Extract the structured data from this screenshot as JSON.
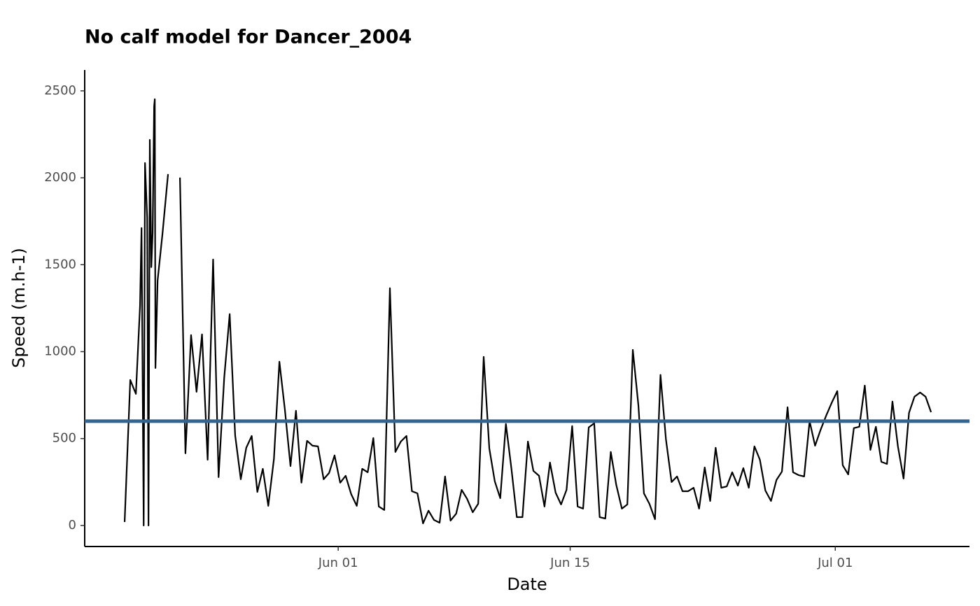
{
  "chart_data": {
    "type": "line",
    "title": "No calf model for Dancer_2004",
    "x_label": "Date",
    "y_label": "Speed (m.h-1)",
    "x": [
      -12.89,
      -12.55,
      -12.21,
      -11.96,
      -11.87,
      -11.74,
      -11.66,
      -11.53,
      -11.45,
      -11.37,
      -11.28,
      -11.2,
      -11.11,
      -11.07,
      -11.03,
      -10.9,
      -10.6,
      -10.27,
      -9.9,
      -9.55,
      -9.22,
      -8.88,
      -8.55,
      -8.22,
      -7.88,
      -7.55,
      -7.22,
      -6.88,
      -6.55,
      -6.22,
      -5.88,
      -5.55,
      -5.22,
      -4.88,
      -4.55,
      -4.22,
      -3.88,
      -3.55,
      -3.22,
      -2.88,
      -2.55,
      -2.22,
      -1.88,
      -1.55,
      -1.22,
      -0.88,
      -0.55,
      -0.22,
      0.12,
      0.45,
      0.78,
      1.12,
      1.45,
      1.78,
      2.12,
      2.45,
      2.78,
      3.12,
      3.45,
      3.78,
      4.12,
      4.45,
      4.78,
      5.12,
      5.45,
      5.78,
      6.12,
      6.45,
      6.78,
      7.12,
      7.45,
      7.78,
      8.12,
      8.45,
      8.78,
      9.12,
      9.45,
      9.78,
      10.12,
      10.45,
      10.78,
      11.12,
      11.45,
      11.78,
      12.12,
      12.45,
      12.78,
      13.12,
      13.45,
      13.78,
      14.12,
      14.45,
      14.78,
      15.12,
      15.45,
      15.78,
      16.12,
      16.45,
      16.78,
      17.12,
      17.45,
      17.78,
      18.12,
      18.45,
      18.78,
      19.12,
      19.45,
      19.78,
      20.12,
      20.45,
      20.78,
      21.12,
      21.45,
      21.78,
      22.12,
      22.45,
      22.78,
      23.12,
      23.45,
      23.78,
      24.12,
      24.45,
      24.78,
      25.12,
      25.45,
      25.78,
      26.12,
      26.45,
      26.78,
      27.12,
      27.45,
      27.78,
      28.12,
      28.45,
      28.78,
      29.12,
      29.45,
      29.78,
      30.12,
      30.45,
      30.78,
      31.12,
      31.45,
      31.78,
      32.12,
      32.45,
      32.78,
      33.12,
      33.45,
      33.78,
      34.12,
      34.45,
      34.78,
      35.12,
      35.45,
      35.78
    ],
    "values": [
      20,
      837,
      757,
      1264,
      1711,
      0,
      2085,
      1771,
      0,
      2218,
      1486,
      1683,
      2411,
      2452,
      906,
      1409,
      1683,
      2021,
      null,
      2001,
      415,
      1095,
      769,
      1099,
      378,
      1530,
      278,
      849,
      1216,
      519,
      266,
      447,
      515,
      193,
      326,
      113,
      382,
      942,
      668,
      342,
      660,
      246,
      487,
      459,
      455,
      266,
      302,
      403,
      246,
      286,
      181,
      113,
      326,
      306,
      503,
      109,
      89,
      1365,
      423,
      483,
      515,
      197,
      185,
      12,
      85,
      32,
      16,
      282,
      28,
      68,
      205,
      153,
      76,
      125,
      970,
      443,
      254,
      157,
      584,
      330,
      48,
      48,
      483,
      314,
      286,
      109,
      362,
      189,
      121,
      205,
      572,
      109,
      97,
      564,
      588,
      48,
      40,
      423,
      234,
      97,
      121,
      1010,
      688,
      185,
      125,
      36,
      866,
      495,
      250,
      282,
      197,
      197,
      217,
      97,
      334,
      141,
      447,
      217,
      225,
      306,
      229,
      330,
      217,
      455,
      378,
      201,
      141,
      262,
      310,
      680,
      306,
      290,
      282,
      600,
      459,
      552,
      632,
      705,
      773,
      346,
      294,
      560,
      568,
      805,
      435,
      568,
      366,
      354,
      713,
      455,
      270,
      648,
      741,
      765,
      741,
      652
    ],
    "color": "#000000",
    "hline": {
      "value": 600,
      "color": "#35648e"
    },
    "xlim": [
      -15.3,
      38.1
    ],
    "xticks": [
      {
        "value": 0,
        "label": "Jun 01"
      },
      {
        "value": 14,
        "label": "Jun 15"
      },
      {
        "value": 30,
        "label": "Jul 01"
      }
    ],
    "ylim": [
      -121,
      2620
    ],
    "yticks": [
      0,
      500,
      1000,
      1500,
      2000,
      2500
    ]
  }
}
